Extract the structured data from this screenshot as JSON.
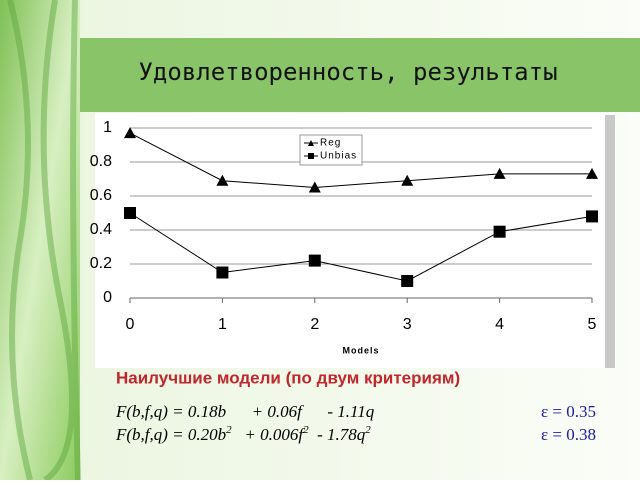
{
  "title": "Удовлетворенность, результаты",
  "chart_data": {
    "type": "line",
    "x": [
      0,
      1,
      2,
      3,
      4,
      5
    ],
    "xlim": [
      0,
      5
    ],
    "xticks": [
      0,
      1,
      2,
      3,
      4,
      5
    ],
    "ylim": [
      0,
      1
    ],
    "yticks": [
      0,
      0.2,
      0.4,
      0.6,
      0.8,
      1
    ],
    "grid": true,
    "x_label": "Models",
    "legend": "top",
    "series": [
      {
        "name": "Reg",
        "color": "#000000",
        "marker": "triangle",
        "values": [
          0.97,
          0.69,
          0.65,
          0.69,
          0.73,
          0.73
        ]
      },
      {
        "name": "Unbias",
        "color": "#000000",
        "marker": "square",
        "values": [
          0.5,
          0.15,
          0.22,
          0.1,
          0.39,
          0.48
        ]
      }
    ]
  },
  "subtitle": "Наилучшие модели (по двум критериям)",
  "formulas": [
    {
      "parts": [
        {
          "text": "F(b,f,q) = 0.18b      + 0.06f      - 1.11q",
          "sup": false
        }
      ],
      "epsilon": "ε = 0.35"
    },
    {
      "parts": [
        {
          "text": "F(b,f,q) = 0.20b",
          "sup": false
        },
        {
          "text": "2",
          "sup": true
        },
        {
          "text": "   + 0.006f",
          "sup": false
        },
        {
          "text": "2",
          "sup": true
        },
        {
          "text": "  - 1.78q",
          "sup": false
        },
        {
          "text": "2",
          "sup": true
        }
      ],
      "epsilon": "ε = 0.38"
    }
  ]
}
